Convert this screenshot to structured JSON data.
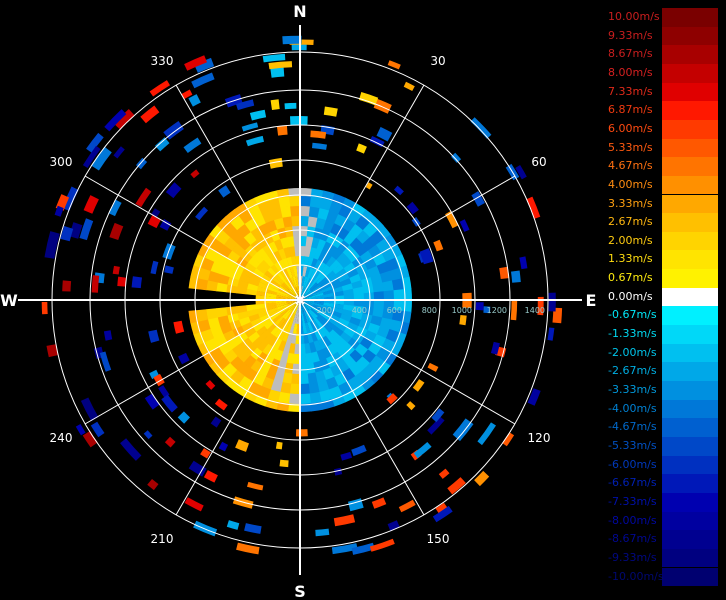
{
  "compass": {
    "north": "N",
    "south": "S",
    "east": "E",
    "west": "W"
  },
  "degree_labels": [
    {
      "deg": 30,
      "text": "30"
    },
    {
      "deg": 60,
      "text": "60"
    },
    {
      "deg": 120,
      "text": "120"
    },
    {
      "deg": 150,
      "text": "150"
    },
    {
      "deg": 210,
      "text": "210"
    },
    {
      "deg": 240,
      "text": "240"
    },
    {
      "deg": 300,
      "text": "300"
    },
    {
      "deg": 330,
      "text": "330"
    }
  ],
  "range_labels": [
    "200",
    "400",
    "600",
    "800",
    "1000",
    "1200",
    "1400"
  ],
  "legend": [
    {
      "label": "10.00m/s",
      "color": "#7a0000",
      "text_color": "#c81e1e"
    },
    {
      "label": "9.33m/s",
      "color": "#8e0000",
      "text_color": "#c81e1e"
    },
    {
      "label": "8.67m/s",
      "color": "#a80000",
      "text_color": "#c81e1e"
    },
    {
      "label": "8.00m/s",
      "color": "#c40000",
      "text_color": "#d42020"
    },
    {
      "label": "7.33m/s",
      "color": "#e00000",
      "text_color": "#e02a1a"
    },
    {
      "label": "6.87m/s",
      "color": "#ff1800",
      "text_color": "#f03a10"
    },
    {
      "label": "6.00m/s",
      "color": "#ff3a00",
      "text_color": "#ff4a10"
    },
    {
      "label": "5.33m/s",
      "color": "#ff5800",
      "text_color": "#ff5a10"
    },
    {
      "label": "4.67m/s",
      "color": "#ff7400",
      "text_color": "#ff7010"
    },
    {
      "label": "4.00m/s",
      "color": "#ff9000",
      "text_color": "#ff8c10"
    },
    {
      "label": "3.33m/s",
      "color": "#ffa800",
      "text_color": "#ffa010"
    },
    {
      "label": "2.67m/s",
      "color": "#ffc000",
      "text_color": "#ffb810"
    },
    {
      "label": "2.00m/s",
      "color": "#ffd400",
      "text_color": "#ffcc10"
    },
    {
      "label": "1.33m/s",
      "color": "#ffe400",
      "text_color": "#ffdd10"
    },
    {
      "label": "0.67m/s",
      "color": "#fff200",
      "text_color": "#ffec10"
    },
    {
      "label": "0.00m/s",
      "color": "#ffffff",
      "text_color": "#ffffff"
    },
    {
      "label": "-0.67m/s",
      "color": "#00f0ff",
      "text_color": "#00e8f8"
    },
    {
      "label": "-1.33m/s",
      "color": "#00d8f8",
      "text_color": "#00d8f0"
    },
    {
      "label": "-2.00m/s",
      "color": "#00c0f0",
      "text_color": "#00c4ea"
    },
    {
      "label": "-2.67m/s",
      "color": "#00a8e8",
      "text_color": "#00aee2"
    },
    {
      "label": "-3.33m/s",
      "color": "#0090e0",
      "text_color": "#0098da"
    },
    {
      "label": "-4.00m/s",
      "color": "#0078d8",
      "text_color": "#0080d2"
    },
    {
      "label": "-4.67m/s",
      "color": "#0060d0",
      "text_color": "#0068ca"
    },
    {
      "label": "-5.33m/s",
      "color": "#0048c8",
      "text_color": "#0050c2"
    },
    {
      "label": "-6.00m/s",
      "color": "#0030c0",
      "text_color": "#0038ba"
    },
    {
      "label": "-6.67m/s",
      "color": "#0018b8",
      "text_color": "#0020b2"
    },
    {
      "label": "-7.33m/s",
      "color": "#0000b0",
      "text_color": "#0010aa"
    },
    {
      "label": "-8.00m/s",
      "color": "#0000a0",
      "text_color": "#0008a0"
    },
    {
      "label": "-8.67m/s",
      "color": "#000090",
      "text_color": "#000890"
    },
    {
      "label": "-9.33m/s",
      "color": "#000080",
      "text_color": "#000880"
    },
    {
      "label": "-10.00m/s",
      "color": "#000070",
      "text_color": "#000870"
    }
  ]
}
